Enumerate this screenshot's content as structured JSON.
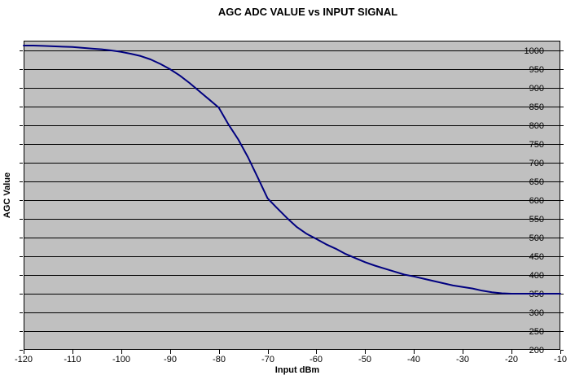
{
  "chart": {
    "title": "AGC ADC VALUE vs INPUT SIGNAL",
    "x_axis_title": "Input dBm",
    "y_axis_title": "AGC Value"
  },
  "chart_data": {
    "type": "line",
    "title": "AGC ADC VALUE vs INPUT SIGNAL",
    "xlabel": "Input dBm",
    "ylabel": "AGC Value",
    "xlim": [
      -120,
      -10
    ],
    "ylim": [
      200,
      1026
    ],
    "x_ticks": [
      -120,
      -110,
      -100,
      -90,
      -80,
      -70,
      -60,
      -50,
      -40,
      -30,
      -20,
      -10
    ],
    "y_ticks": [
      200,
      250,
      300,
      350,
      400,
      450,
      500,
      550,
      600,
      650,
      700,
      750,
      800,
      850,
      900,
      950,
      1000
    ],
    "grid": "horizontal-major",
    "legend": "none",
    "colors": {
      "line": "#000080",
      "plot_background": "#C0C0C0",
      "gridline": "#000000",
      "text": "#000000",
      "chart_background": "#FFFFFF"
    },
    "series": [
      {
        "points": [
          [
            -120,
            1013
          ],
          [
            -118,
            1013
          ],
          [
            -116,
            1012
          ],
          [
            -114,
            1011
          ],
          [
            -112,
            1010
          ],
          [
            -110,
            1009
          ],
          [
            -108,
            1007
          ],
          [
            -106,
            1005
          ],
          [
            -104,
            1003
          ],
          [
            -102,
            1000
          ],
          [
            -100,
            996
          ],
          [
            -98,
            991
          ],
          [
            -96,
            985
          ],
          [
            -94,
            976
          ],
          [
            -92,
            964
          ],
          [
            -90,
            950
          ],
          [
            -88,
            933
          ],
          [
            -86,
            913
          ],
          [
            -84,
            891
          ],
          [
            -82,
            869
          ],
          [
            -80,
            847
          ],
          [
            -78,
            802
          ],
          [
            -76,
            762
          ],
          [
            -74,
            714
          ],
          [
            -72,
            660
          ],
          [
            -70,
            605
          ],
          [
            -68,
            578
          ],
          [
            -66,
            552
          ],
          [
            -64,
            528
          ],
          [
            -62,
            510
          ],
          [
            -60,
            496
          ],
          [
            -58,
            482
          ],
          [
            -56,
            470
          ],
          [
            -54,
            456
          ],
          [
            -52,
            445
          ],
          [
            -50,
            434
          ],
          [
            -48,
            425
          ],
          [
            -46,
            417
          ],
          [
            -44,
            409
          ],
          [
            -42,
            401
          ],
          [
            -40,
            396
          ],
          [
            -38,
            390
          ],
          [
            -36,
            384
          ],
          [
            -34,
            378
          ],
          [
            -32,
            372
          ],
          [
            -30,
            368
          ],
          [
            -28,
            364
          ],
          [
            -26,
            358
          ],
          [
            -24,
            354
          ],
          [
            -22,
            351
          ],
          [
            -20,
            350
          ],
          [
            -18,
            350
          ],
          [
            -16,
            350
          ],
          [
            -14,
            350
          ],
          [
            -12,
            350
          ],
          [
            -10,
            350
          ]
        ]
      }
    ]
  }
}
